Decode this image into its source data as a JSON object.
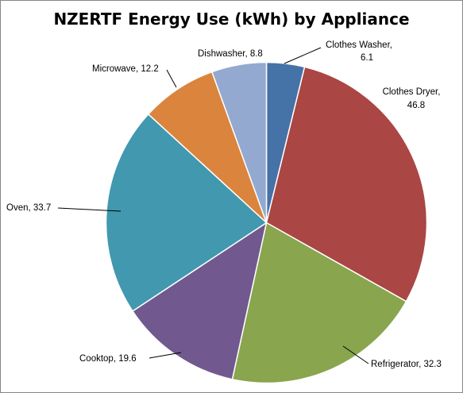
{
  "chart_data": {
    "type": "pie",
    "title": "NZERTF Energy Use (kWh) by Appliance",
    "slices": [
      {
        "label": "Clothes Washer",
        "value": 6.1,
        "color": "#4572A7",
        "data_label": [
          "Clothes Washer,",
          "6.1"
        ]
      },
      {
        "label": "Clothes Dryer",
        "value": 46.8,
        "color": "#AA4643",
        "data_label": [
          "Clothes Dryer,",
          "46.8"
        ]
      },
      {
        "label": "Refrigerator",
        "value": 32.3,
        "color": "#89A54E",
        "data_label": [
          "Refrigerator, 32.3"
        ]
      },
      {
        "label": "Cooktop",
        "value": 19.6,
        "color": "#71588F",
        "data_label": [
          "Cooktop, 19.6"
        ]
      },
      {
        "label": "Oven",
        "value": 33.7,
        "color": "#4198AF",
        "data_label": [
          "Oven, 33.7"
        ]
      },
      {
        "label": "Microwave",
        "value": 12.2,
        "color": "#DB843D",
        "data_label": [
          "Microwave, 12.2"
        ]
      },
      {
        "label": "Dishwasher",
        "value": 8.8,
        "color": "#93A9CF",
        "data_label": [
          "Dishwasher, 8.8"
        ]
      }
    ],
    "start_direction": "12 o'clock",
    "direction": "clockwise",
    "legend": "none"
  }
}
